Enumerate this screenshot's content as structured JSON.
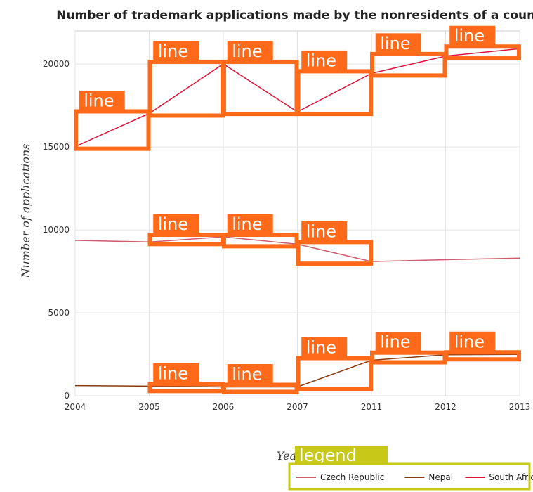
{
  "chart_data": {
    "type": "line",
    "title": "Number of trademark applications made by the nonresidents of a country",
    "xlabel": "Years",
    "ylabel": "Number of applications",
    "categories": [
      "2004",
      "2005",
      "2006",
      "2007",
      "2011",
      "2012",
      "2013"
    ],
    "ylim": [
      0,
      22000
    ],
    "yticks": [
      0,
      5000,
      10000,
      15000,
      20000
    ],
    "grid": true,
    "series": [
      {
        "name": "Czech Republic",
        "color": "#cd5c6c",
        "values": [
          9370,
          9270,
          9580,
          9140,
          8090,
          8200,
          8300
        ]
      },
      {
        "name": "Nepal",
        "color": "#8b3a10",
        "values": [
          610,
          580,
          530,
          530,
          2140,
          2470,
          2490
        ]
      },
      {
        "name": "South Africa",
        "color": "#dc143c",
        "values": [
          15020,
          17020,
          20010,
          17120,
          19440,
          20480,
          20930
        ]
      }
    ],
    "legend": {
      "title": "legend",
      "position": "bottom-right"
    },
    "annotation_text": "line",
    "tag_color": "#ff6a1a",
    "legend_tag_color": "#c8c818"
  }
}
